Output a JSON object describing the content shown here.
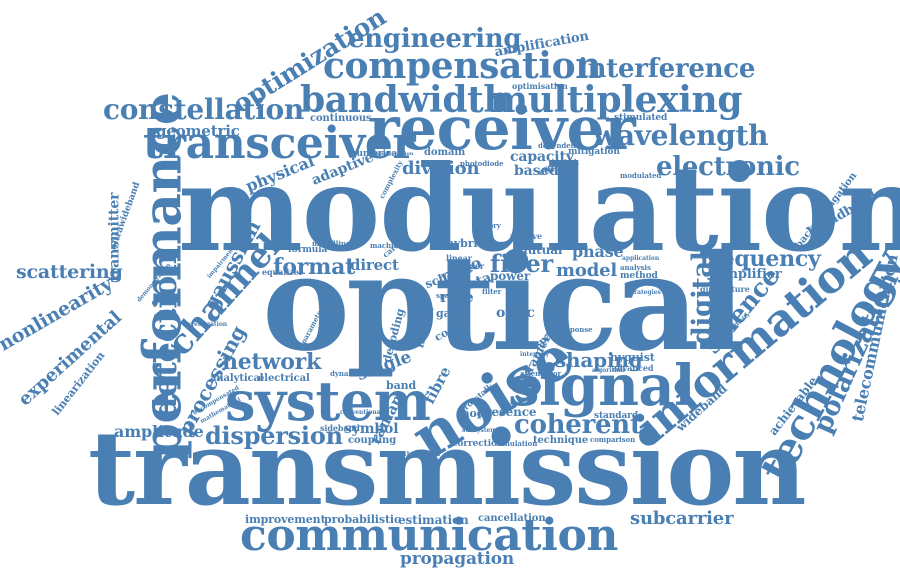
{
  "colors": {
    "word": "#4a7fb3",
    "background": "#ffffff"
  },
  "words": [
    {
      "text": "modulation"
    },
    {
      "text": "optical"
    },
    {
      "text": "transmission"
    },
    {
      "text": "receiver"
    },
    {
      "text": "signal"
    },
    {
      "text": "communication"
    },
    {
      "text": "system"
    },
    {
      "text": "noise"
    },
    {
      "text": "performance"
    },
    {
      "text": "transceiver"
    },
    {
      "text": "bandwidth"
    },
    {
      "text": "multiplexing"
    },
    {
      "text": "compensation"
    },
    {
      "text": "constellation"
    },
    {
      "text": "wavelength"
    },
    {
      "text": "information"
    },
    {
      "text": "technology"
    },
    {
      "text": "detection"
    },
    {
      "text": "channel"
    },
    {
      "text": "dispersion"
    },
    {
      "text": "coherent"
    },
    {
      "text": "engineering"
    },
    {
      "text": "interference"
    },
    {
      "text": "electronic"
    },
    {
      "text": "optimization"
    },
    {
      "text": "polarization"
    },
    {
      "text": "science"
    },
    {
      "text": "frequency"
    },
    {
      "text": "digital"
    },
    {
      "text": "network"
    },
    {
      "text": "processing"
    },
    {
      "text": "gaussian"
    },
    {
      "text": "format"
    },
    {
      "text": "fiber"
    },
    {
      "text": "shaping"
    },
    {
      "text": "subcarrier"
    },
    {
      "text": "propagation"
    },
    {
      "text": "scattering"
    },
    {
      "text": "nonlinearity"
    },
    {
      "text": "experimental"
    },
    {
      "text": "transmitter"
    },
    {
      "text": "telecommunication"
    },
    {
      "text": "amplitude"
    },
    {
      "text": "physical"
    },
    {
      "text": "geometric"
    },
    {
      "text": "adaptive"
    },
    {
      "text": "division"
    },
    {
      "text": "model"
    },
    {
      "text": "phase"
    },
    {
      "text": "capacity"
    },
    {
      "text": "based"
    },
    {
      "text": "single"
    },
    {
      "text": "ratio"
    },
    {
      "text": "direct"
    },
    {
      "text": "rate"
    },
    {
      "text": "fibre"
    },
    {
      "text": "raman"
    },
    {
      "text": "symbol"
    },
    {
      "text": "optic"
    },
    {
      "text": "presence"
    },
    {
      "text": "amplification"
    },
    {
      "text": "broadband"
    },
    {
      "text": "wideband"
    },
    {
      "text": "amplifier"
    },
    {
      "text": "achievable"
    },
    {
      "text": "backpropagation"
    },
    {
      "text": "ultrawideband"
    },
    {
      "text": "linearization"
    },
    {
      "text": "estimation"
    },
    {
      "text": "improvement"
    },
    {
      "text": "probabilistic"
    },
    {
      "text": "cancellation"
    },
    {
      "text": "analytical"
    },
    {
      "text": "electrical"
    },
    {
      "text": "band"
    },
    {
      "text": "nyquist"
    },
    {
      "text": "continuous"
    },
    {
      "text": "stimulated"
    },
    {
      "text": "mitigation"
    },
    {
      "text": "efficient"
    },
    {
      "text": "domain"
    },
    {
      "text": "numerical"
    },
    {
      "text": "optimisation"
    },
    {
      "text": "kramers"
    },
    {
      "text": "mode"
    },
    {
      "text": "technique"
    },
    {
      "text": "correction"
    },
    {
      "text": "coupling"
    },
    {
      "text": "sideband"
    },
    {
      "text": "standard"
    },
    {
      "text": "advanced"
    },
    {
      "text": "hybrid"
    },
    {
      "text": "mutual"
    },
    {
      "text": "impact"
    },
    {
      "text": "decoding"
    },
    {
      "text": "gain"
    },
    {
      "text": "coded"
    },
    {
      "text": "power"
    },
    {
      "text": "equalizer"
    },
    {
      "text": "formula"
    },
    {
      "text": "quadrature"
    },
    {
      "text": "method"
    },
    {
      "text": "modulated"
    },
    {
      "text": "dependent"
    },
    {
      "text": "response"
    },
    {
      "text": "spatial"
    },
    {
      "text": "attenuator"
    },
    {
      "text": "simulation"
    },
    {
      "text": "comparison"
    },
    {
      "text": "conventional"
    },
    {
      "text": "dynamic"
    },
    {
      "text": "crosstalk"
    },
    {
      "text": "passive"
    },
    {
      "text": "investigation"
    },
    {
      "text": "demonstration"
    },
    {
      "text": "impairment"
    },
    {
      "text": "photodiode"
    },
    {
      "text": "data"
    },
    {
      "text": "scheme"
    },
    {
      "text": "modelling"
    },
    {
      "text": "linear"
    },
    {
      "text": "order"
    },
    {
      "text": "filter"
    },
    {
      "text": "machine"
    },
    {
      "text": "carrier"
    },
    {
      "text": "complexity"
    },
    {
      "text": "parameter"
    },
    {
      "text": "theoretical"
    },
    {
      "text": "application"
    },
    {
      "text": "analysis"
    },
    {
      "text": "strategies"
    },
    {
      "text": "mathematical"
    },
    {
      "text": "uncompensated"
    },
    {
      "text": "sensitivity"
    },
    {
      "text": "subsystem"
    },
    {
      "text": "span"
    },
    {
      "text": "theory"
    },
    {
      "text": "characterization"
    },
    {
      "text": "algorithm"
    },
    {
      "text": "intensity"
    }
  ]
}
